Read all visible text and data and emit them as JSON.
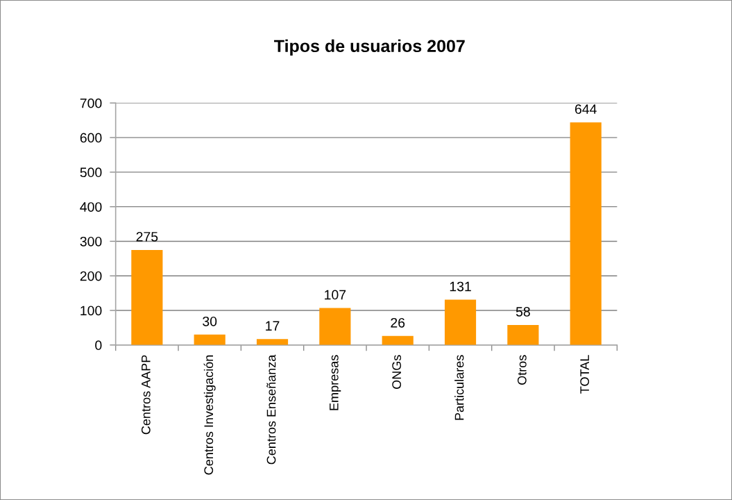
{
  "chart_data": {
    "type": "bar",
    "title": "Tipos de usuarios 2007",
    "categories": [
      "Centros AAPP",
      "Centros Investigación",
      "Centros Enseñanza",
      "Empresas",
      "ONGs",
      "Particulares",
      "Otros",
      "TOTAL"
    ],
    "values": [
      275,
      30,
      17,
      107,
      26,
      131,
      58,
      644
    ],
    "color": "#ff9900",
    "ylim": [
      0,
      700
    ],
    "yticks": [
      0,
      100,
      200,
      300,
      400,
      500,
      600,
      700
    ],
    "grid": "y",
    "data_labels": true
  }
}
